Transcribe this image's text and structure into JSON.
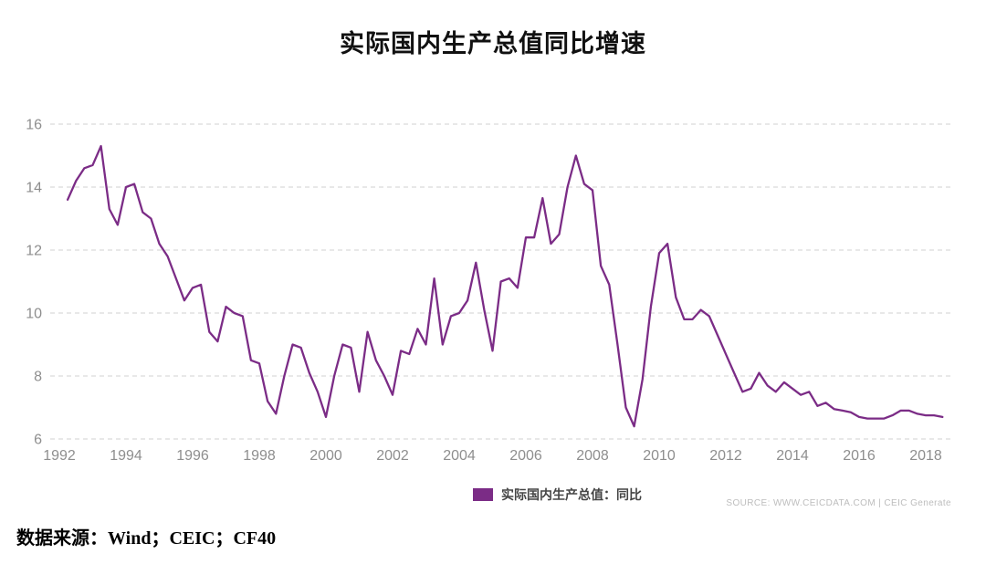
{
  "title": "实际国内生产总值同比增速",
  "legend": {
    "swatch_color": "#7b2c86",
    "label": "实际国内生产总值：同比"
  },
  "source_note": "SOURCE: WWW.CEICDATA.COM | CEIC Generate",
  "caption": "数据来源：Wind；CEIC；CF40",
  "chart_data": {
    "type": "line",
    "title": "实际国内生产总值同比增速",
    "unit": "percent",
    "frequency": "quarterly",
    "x_start": "1992Q1",
    "x_end": "2018Q2",
    "xticks": [
      1992,
      1994,
      1996,
      1998,
      2000,
      2002,
      2004,
      2006,
      2008,
      2010,
      2012,
      2014,
      2016,
      2018
    ],
    "yticks": [
      6,
      8,
      10,
      12,
      14,
      16
    ],
    "ylim": [
      6,
      16
    ],
    "grid": "horizontal-dashed",
    "legend_position": "bottom-center",
    "series": [
      {
        "name": "实际国内生产总值：同比",
        "color": "#7b2c86",
        "values": [
          13.6,
          14.2,
          14.6,
          14.7,
          15.3,
          13.3,
          12.8,
          14.0,
          14.1,
          13.2,
          13.0,
          12.2,
          11.8,
          11.1,
          10.4,
          10.8,
          10.9,
          9.4,
          9.1,
          10.2,
          10.0,
          9.9,
          8.5,
          8.4,
          7.2,
          6.8,
          8.0,
          9.0,
          8.9,
          8.1,
          7.5,
          6.7,
          8.0,
          9.0,
          8.9,
          7.5,
          9.4,
          8.5,
          8.0,
          7.4,
          8.8,
          8.7,
          9.5,
          9.0,
          11.1,
          9.0,
          9.9,
          10.0,
          10.4,
          11.6,
          10.1,
          8.8,
          11.0,
          11.1,
          10.8,
          12.4,
          12.4,
          13.65,
          12.2,
          12.5,
          14.0,
          15.0,
          14.1,
          13.9,
          11.5,
          10.9,
          9.0,
          7.0,
          6.4,
          7.9,
          10.2,
          11.9,
          12.2,
          10.5,
          9.8,
          9.8,
          10.1,
          9.9,
          9.3,
          8.7,
          8.1,
          7.5,
          7.6,
          8.1,
          7.7,
          7.5,
          7.8,
          7.6,
          7.4,
          7.5,
          7.05,
          7.15,
          6.95,
          6.9,
          6.85,
          6.7,
          6.65,
          6.65,
          6.65,
          6.75,
          6.9,
          6.9,
          6.8,
          6.75,
          6.75,
          6.7
        ]
      }
    ]
  }
}
